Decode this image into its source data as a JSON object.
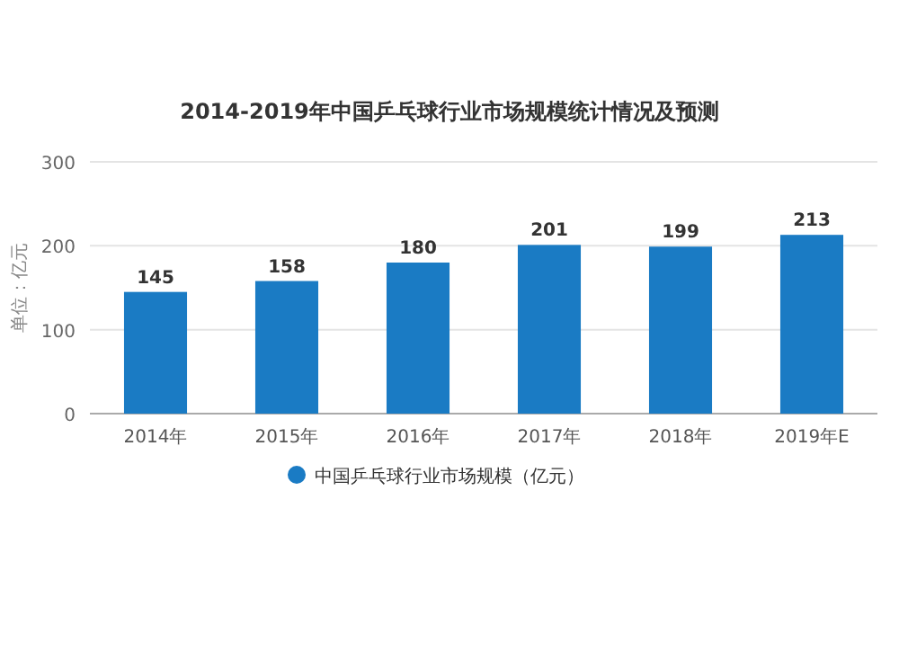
{
  "chart_data": {
    "type": "bar",
    "title": "2014-2019年中国乒乓球行业市场规模统计情况及预测",
    "ylabel": "单位：亿元",
    "categories": [
      "2014年",
      "2015年",
      "2016年",
      "2017年",
      "2018年",
      "2019年E"
    ],
    "series": [
      {
        "name": "中国乒乓球行业市场规模（亿元）",
        "color": "#1a7bc4",
        "values": [
          145,
          158,
          180,
          201,
          199,
          213
        ]
      }
    ],
    "ylim": [
      0,
      300
    ],
    "yticks": [
      0,
      100,
      200,
      300
    ],
    "grid": "y",
    "legend": "bottom",
    "data_labels": true
  }
}
